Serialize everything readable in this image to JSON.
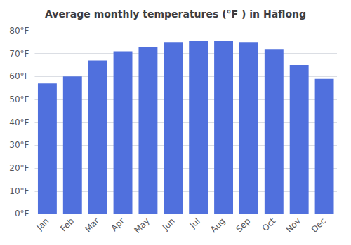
{
  "chart_data": {
    "type": "bar",
    "title": "Average monthly temperatures (°F ) in Hāflong",
    "categories": [
      "Jan",
      "Feb",
      "Mar",
      "Apr",
      "May",
      "Jun",
      "Jul",
      "Aug",
      "Sep",
      "Oct",
      "Nov",
      "Dec"
    ],
    "values": [
      57,
      60,
      67,
      71,
      73,
      75,
      75.5,
      75.5,
      75,
      72,
      65,
      59
    ],
    "ylim": [
      0,
      80
    ],
    "yticks": [
      {
        "value": 0,
        "label": "0°F"
      },
      {
        "value": 10,
        "label": "10°F"
      },
      {
        "value": 20,
        "label": "20°F"
      },
      {
        "value": 30,
        "label": "30°F"
      },
      {
        "value": 40,
        "label": "40°F"
      },
      {
        "value": 50,
        "label": "50°F"
      },
      {
        "value": 60,
        "label": "60°F"
      },
      {
        "value": 70,
        "label": "70°F"
      },
      {
        "value": 80,
        "label": "80°F"
      }
    ],
    "grid": true
  }
}
